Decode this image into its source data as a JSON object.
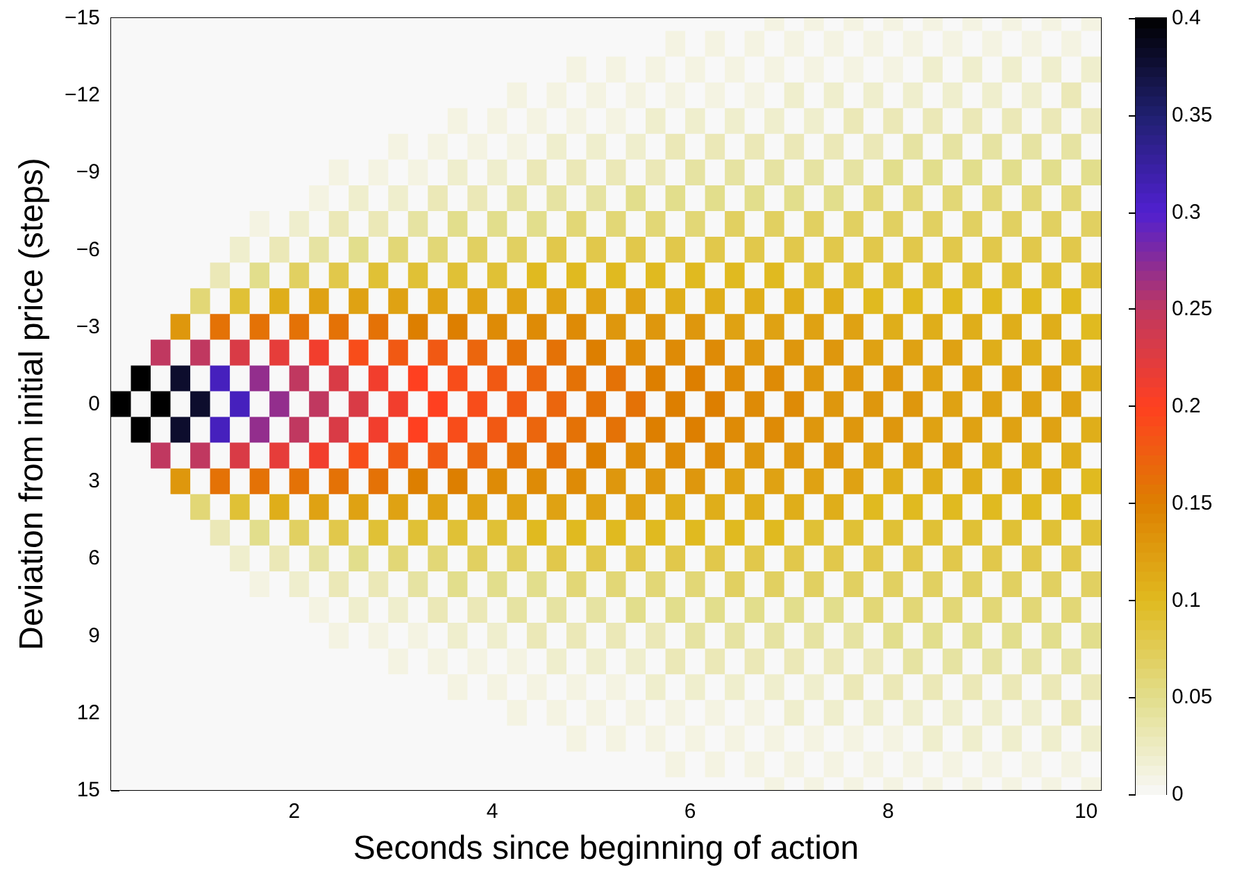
{
  "chart_data": {
    "type": "heatmap",
    "xlabel": "Seconds since beginning of action",
    "ylabel": "Deviation from initial price (steps)",
    "x": [
      0.25,
      0.45,
      0.65,
      0.85,
      1.05,
      1.25,
      1.45,
      1.65,
      1.85,
      2.05,
      2.25,
      2.45,
      2.65,
      2.85,
      3.05,
      3.25,
      3.45,
      3.65,
      3.85,
      4.05,
      4.25,
      4.45,
      4.65,
      4.85,
      5.05,
      5.25,
      5.45,
      5.65,
      5.85,
      6.05,
      6.25,
      6.45,
      6.65,
      6.85,
      7.05,
      7.25,
      7.45,
      7.65,
      7.85,
      8.05,
      8.25,
      8.45,
      8.65,
      8.85,
      9.05,
      9.25,
      9.45,
      9.65,
      9.85,
      10.05
    ],
    "y": [
      -15,
      -14,
      -13,
      -12,
      -11,
      -10,
      -9,
      -8,
      -7,
      -6,
      -5,
      -4,
      -3,
      -2,
      -1,
      0,
      1,
      2,
      3,
      4,
      5,
      6,
      7,
      8,
      9,
      10,
      11,
      12,
      13,
      14,
      15
    ],
    "xlim": [
      0.15,
      10.15
    ],
    "xticks": [
      2,
      4,
      6,
      8,
      10
    ],
    "ylim": [
      15,
      -15
    ],
    "yticks": [
      -15,
      -12,
      -9,
      -6,
      -3,
      0,
      3,
      6,
      9,
      12,
      15
    ],
    "clim": [
      0,
      0.4
    ],
    "cticks": [
      0,
      0.05,
      0.1,
      0.15,
      0.2,
      0.25,
      0.3,
      0.35,
      0.4
    ],
    "grid": false,
    "cells": [
      [
        0,
        0,
        0,
        0,
        0,
        0,
        0,
        0,
        0,
        0,
        0,
        0,
        0,
        0,
        0,
        0,
        0,
        0,
        0,
        0,
        0,
        0,
        0,
        0,
        0,
        0,
        0,
        0,
        0,
        0,
        0,
        0,
        0,
        0.01,
        0,
        0.01,
        0,
        0.01,
        0,
        0.01,
        0,
        0.01,
        0,
        0.01,
        0,
        0.01,
        0,
        0.01,
        0,
        0.01
      ],
      [
        0,
        0,
        0,
        0,
        0,
        0,
        0,
        0,
        0,
        0,
        0,
        0,
        0,
        0,
        0,
        0,
        0,
        0,
        0,
        0,
        0,
        0,
        0,
        0,
        0,
        0,
        0,
        0,
        0.01,
        0,
        0.01,
        0,
        0.01,
        0,
        0.01,
        0,
        0.01,
        0,
        0.01,
        0,
        0.01,
        0,
        0.01,
        0,
        0.01,
        0,
        0.01,
        0,
        0.01,
        0
      ],
      [
        0,
        0,
        0,
        0,
        0,
        0,
        0,
        0,
        0,
        0,
        0,
        0,
        0,
        0,
        0,
        0,
        0,
        0,
        0,
        0,
        0,
        0,
        0,
        0.01,
        0,
        0.01,
        0,
        0.01,
        0,
        0.01,
        0,
        0.01,
        0,
        0.01,
        0,
        0.01,
        0,
        0.01,
        0,
        0.01,
        0,
        0.02,
        0,
        0.02,
        0,
        0.02,
        0,
        0.02,
        0,
        0.02
      ],
      [
        0,
        0,
        0,
        0,
        0,
        0,
        0,
        0,
        0,
        0,
        0,
        0,
        0,
        0,
        0,
        0,
        0,
        0,
        0,
        0,
        0.01,
        0,
        0.01,
        0,
        0.01,
        0,
        0.01,
        0,
        0.01,
        0,
        0.01,
        0,
        0.01,
        0,
        0.02,
        0,
        0.02,
        0,
        0.02,
        0,
        0.02,
        0,
        0.02,
        0,
        0.02,
        0,
        0.02,
        0,
        0.03,
        0
      ],
      [
        0,
        0,
        0,
        0,
        0,
        0,
        0,
        0,
        0,
        0,
        0,
        0,
        0,
        0,
        0,
        0,
        0,
        0.01,
        0,
        0.01,
        0,
        0.01,
        0,
        0.01,
        0,
        0.01,
        0,
        0.02,
        0,
        0.02,
        0,
        0.02,
        0,
        0.02,
        0,
        0.02,
        0,
        0.03,
        0,
        0.03,
        0,
        0.03,
        0,
        0.03,
        0,
        0.03,
        0,
        0.03,
        0,
        0.03
      ],
      [
        0,
        0,
        0,
        0,
        0,
        0,
        0,
        0,
        0,
        0,
        0,
        0,
        0,
        0,
        0.01,
        0,
        0.01,
        0,
        0.01,
        0,
        0.01,
        0,
        0.02,
        0,
        0.02,
        0,
        0.02,
        0,
        0.03,
        0,
        0.03,
        0,
        0.03,
        0,
        0.03,
        0,
        0.03,
        0,
        0.03,
        0,
        0.04,
        0,
        0.04,
        0,
        0.04,
        0,
        0.04,
        0,
        0.04,
        0
      ],
      [
        0,
        0,
        0,
        0,
        0,
        0,
        0,
        0,
        0,
        0,
        0,
        0.01,
        0,
        0.01,
        0,
        0.01,
        0,
        0.02,
        0,
        0.02,
        0,
        0.03,
        0,
        0.03,
        0,
        0.03,
        0,
        0.03,
        0,
        0.04,
        0,
        0.04,
        0,
        0.04,
        0,
        0.04,
        0,
        0.04,
        0,
        0.05,
        0,
        0.05,
        0,
        0.05,
        0,
        0.05,
        0,
        0.05,
        0,
        0.05
      ],
      [
        0,
        0,
        0,
        0,
        0,
        0,
        0,
        0,
        0,
        0,
        0.01,
        0,
        0.02,
        0,
        0.02,
        0,
        0.03,
        0,
        0.03,
        0,
        0.04,
        0,
        0.04,
        0,
        0.04,
        0,
        0.05,
        0,
        0.05,
        0,
        0.05,
        0,
        0.05,
        0,
        0.05,
        0,
        0.05,
        0,
        0.06,
        0,
        0.06,
        0,
        0.06,
        0,
        0.06,
        0,
        0.06,
        0,
        0.06,
        0
      ],
      [
        0,
        0,
        0,
        0,
        0,
        0,
        0,
        0.01,
        0,
        0.02,
        0,
        0.03,
        0,
        0.03,
        0,
        0.04,
        0,
        0.05,
        0,
        0.05,
        0,
        0.05,
        0,
        0.06,
        0,
        0.06,
        0,
        0.06,
        0,
        0.06,
        0,
        0.07,
        0,
        0.07,
        0,
        0.07,
        0,
        0.07,
        0,
        0.07,
        0,
        0.07,
        0,
        0.07,
        0,
        0.07,
        0,
        0.07,
        0,
        0.07
      ],
      [
        0,
        0,
        0,
        0,
        0,
        0,
        0.02,
        0,
        0.03,
        0,
        0.04,
        0,
        0.05,
        0,
        0.06,
        0,
        0.06,
        0,
        0.07,
        0,
        0.07,
        0,
        0.08,
        0,
        0.08,
        0,
        0.08,
        0,
        0.08,
        0,
        0.08,
        0,
        0.08,
        0,
        0.08,
        0,
        0.08,
        0,
        0.08,
        0,
        0.08,
        0,
        0.08,
        0,
        0.08,
        0,
        0.08,
        0,
        0.08,
        0
      ],
      [
        0,
        0,
        0,
        0,
        0,
        0.03,
        0,
        0.05,
        0,
        0.07,
        0,
        0.08,
        0,
        0.09,
        0,
        0.09,
        0,
        0.09,
        0,
        0.09,
        0,
        0.1,
        0,
        0.1,
        0,
        0.1,
        0,
        0.1,
        0,
        0.1,
        0,
        0.1,
        0,
        0.1,
        0,
        0.09,
        0,
        0.09,
        0,
        0.09,
        0,
        0.09,
        0,
        0.09,
        0,
        0.09,
        0,
        0.09,
        0,
        0.09
      ],
      [
        0,
        0,
        0,
        0,
        0.06,
        0,
        0.09,
        0,
        0.11,
        0,
        0.12,
        0,
        0.12,
        0,
        0.12,
        0,
        0.12,
        0,
        0.12,
        0,
        0.12,
        0,
        0.12,
        0,
        0.12,
        0,
        0.12,
        0,
        0.11,
        0,
        0.11,
        0,
        0.11,
        0,
        0.11,
        0,
        0.11,
        0,
        0.1,
        0,
        0.1,
        0,
        0.1,
        0,
        0.1,
        0,
        0.1,
        0,
        0.1,
        0
      ],
      [
        0,
        0,
        0,
        0.13,
        0,
        0.16,
        0,
        0.16,
        0,
        0.16,
        0,
        0.16,
        0,
        0.16,
        0,
        0.15,
        0,
        0.15,
        0,
        0.14,
        0,
        0.14,
        0,
        0.14,
        0,
        0.13,
        0,
        0.13,
        0,
        0.13,
        0,
        0.12,
        0,
        0.12,
        0,
        0.12,
        0,
        0.12,
        0,
        0.11,
        0,
        0.11,
        0,
        0.11,
        0,
        0.11,
        0,
        0.11,
        0,
        0.1
      ],
      [
        0,
        0,
        0.25,
        0,
        0.25,
        0,
        0.23,
        0,
        0.22,
        0,
        0.21,
        0,
        0.19,
        0,
        0.18,
        0,
        0.18,
        0,
        0.17,
        0,
        0.16,
        0,
        0.16,
        0,
        0.15,
        0,
        0.14,
        0,
        0.14,
        0,
        0.14,
        0,
        0.13,
        0,
        0.13,
        0,
        0.13,
        0,
        0.12,
        0,
        0.12,
        0,
        0.12,
        0,
        0.11,
        0,
        0.11,
        0,
        0.11,
        0
      ],
      [
        0,
        0.4,
        0,
        0.38,
        0,
        0.31,
        0,
        0.27,
        0,
        0.25,
        0,
        0.23,
        0,
        0.21,
        0,
        0.2,
        0,
        0.19,
        0,
        0.18,
        0,
        0.17,
        0,
        0.16,
        0,
        0.16,
        0,
        0.15,
        0,
        0.15,
        0,
        0.14,
        0,
        0.14,
        0,
        0.13,
        0,
        0.13,
        0,
        0.13,
        0,
        0.12,
        0,
        0.12,
        0,
        0.12,
        0,
        0.12,
        0,
        0.11
      ],
      [
        0.4,
        0,
        0.4,
        0,
        0.38,
        0,
        0.31,
        0,
        0.27,
        0,
        0.25,
        0,
        0.23,
        0,
        0.21,
        0,
        0.2,
        0,
        0.19,
        0,
        0.18,
        0,
        0.17,
        0,
        0.16,
        0,
        0.16,
        0,
        0.15,
        0,
        0.15,
        0,
        0.14,
        0,
        0.14,
        0,
        0.13,
        0,
        0.13,
        0,
        0.13,
        0,
        0.12,
        0,
        0.12,
        0,
        0.12,
        0,
        0.12,
        0
      ],
      [
        0,
        0.4,
        0,
        0.38,
        0,
        0.31,
        0,
        0.27,
        0,
        0.25,
        0,
        0.23,
        0,
        0.21,
        0,
        0.2,
        0,
        0.19,
        0,
        0.18,
        0,
        0.17,
        0,
        0.16,
        0,
        0.16,
        0,
        0.15,
        0,
        0.15,
        0,
        0.14,
        0,
        0.14,
        0,
        0.13,
        0,
        0.13,
        0,
        0.13,
        0,
        0.12,
        0,
        0.12,
        0,
        0.12,
        0,
        0.12,
        0,
        0.11
      ],
      [
        0,
        0,
        0.25,
        0,
        0.25,
        0,
        0.23,
        0,
        0.22,
        0,
        0.21,
        0,
        0.19,
        0,
        0.18,
        0,
        0.18,
        0,
        0.17,
        0,
        0.16,
        0,
        0.16,
        0,
        0.15,
        0,
        0.14,
        0,
        0.14,
        0,
        0.14,
        0,
        0.13,
        0,
        0.13,
        0,
        0.13,
        0,
        0.12,
        0,
        0.12,
        0,
        0.12,
        0,
        0.11,
        0,
        0.11,
        0,
        0.11,
        0
      ],
      [
        0,
        0,
        0,
        0.13,
        0,
        0.16,
        0,
        0.16,
        0,
        0.16,
        0,
        0.16,
        0,
        0.16,
        0,
        0.15,
        0,
        0.15,
        0,
        0.14,
        0,
        0.14,
        0,
        0.14,
        0,
        0.13,
        0,
        0.13,
        0,
        0.13,
        0,
        0.12,
        0,
        0.12,
        0,
        0.12,
        0,
        0.12,
        0,
        0.11,
        0,
        0.11,
        0,
        0.11,
        0,
        0.11,
        0,
        0.11,
        0,
        0.1
      ],
      [
        0,
        0,
        0,
        0,
        0.06,
        0,
        0.09,
        0,
        0.11,
        0,
        0.12,
        0,
        0.12,
        0,
        0.12,
        0,
        0.12,
        0,
        0.12,
        0,
        0.12,
        0,
        0.12,
        0,
        0.12,
        0,
        0.12,
        0,
        0.11,
        0,
        0.11,
        0,
        0.11,
        0,
        0.11,
        0,
        0.11,
        0,
        0.1,
        0,
        0.1,
        0,
        0.1,
        0,
        0.1,
        0,
        0.1,
        0,
        0.1,
        0
      ],
      [
        0,
        0,
        0,
        0,
        0,
        0.03,
        0,
        0.05,
        0,
        0.07,
        0,
        0.08,
        0,
        0.09,
        0,
        0.09,
        0,
        0.09,
        0,
        0.09,
        0,
        0.1,
        0,
        0.1,
        0,
        0.1,
        0,
        0.1,
        0,
        0.1,
        0,
        0.1,
        0,
        0.1,
        0,
        0.09,
        0,
        0.09,
        0,
        0.09,
        0,
        0.09,
        0,
        0.09,
        0,
        0.09,
        0,
        0.09,
        0,
        0.09
      ],
      [
        0,
        0,
        0,
        0,
        0,
        0,
        0.02,
        0,
        0.03,
        0,
        0.04,
        0,
        0.05,
        0,
        0.06,
        0,
        0.06,
        0,
        0.07,
        0,
        0.07,
        0,
        0.08,
        0,
        0.08,
        0,
        0.08,
        0,
        0.08,
        0,
        0.08,
        0,
        0.08,
        0,
        0.08,
        0,
        0.08,
        0,
        0.08,
        0,
        0.08,
        0,
        0.08,
        0,
        0.08,
        0,
        0.08,
        0,
        0.08,
        0
      ],
      [
        0,
        0,
        0,
        0,
        0,
        0,
        0,
        0.01,
        0,
        0.02,
        0,
        0.03,
        0,
        0.03,
        0,
        0.04,
        0,
        0.05,
        0,
        0.05,
        0,
        0.05,
        0,
        0.06,
        0,
        0.06,
        0,
        0.06,
        0,
        0.06,
        0,
        0.07,
        0,
        0.07,
        0,
        0.07,
        0,
        0.07,
        0,
        0.07,
        0,
        0.07,
        0,
        0.07,
        0,
        0.07,
        0,
        0.07,
        0,
        0.07
      ],
      [
        0,
        0,
        0,
        0,
        0,
        0,
        0,
        0,
        0,
        0,
        0.01,
        0,
        0.02,
        0,
        0.02,
        0,
        0.03,
        0,
        0.03,
        0,
        0.04,
        0,
        0.04,
        0,
        0.04,
        0,
        0.05,
        0,
        0.05,
        0,
        0.05,
        0,
        0.05,
        0,
        0.05,
        0,
        0.05,
        0,
        0.06,
        0,
        0.06,
        0,
        0.06,
        0,
        0.06,
        0,
        0.06,
        0,
        0.06,
        0
      ],
      [
        0,
        0,
        0,
        0,
        0,
        0,
        0,
        0,
        0,
        0,
        0,
        0.01,
        0,
        0.01,
        0,
        0.01,
        0,
        0.02,
        0,
        0.02,
        0,
        0.03,
        0,
        0.03,
        0,
        0.03,
        0,
        0.03,
        0,
        0.04,
        0,
        0.04,
        0,
        0.04,
        0,
        0.04,
        0,
        0.04,
        0,
        0.05,
        0,
        0.05,
        0,
        0.05,
        0,
        0.05,
        0,
        0.05,
        0,
        0.05
      ],
      [
        0,
        0,
        0,
        0,
        0,
        0,
        0,
        0,
        0,
        0,
        0,
        0,
        0,
        0,
        0.01,
        0,
        0.01,
        0,
        0.01,
        0,
        0.01,
        0,
        0.02,
        0,
        0.02,
        0,
        0.02,
        0,
        0.03,
        0,
        0.03,
        0,
        0.03,
        0,
        0.03,
        0,
        0.03,
        0,
        0.03,
        0,
        0.04,
        0,
        0.04,
        0,
        0.04,
        0,
        0.04,
        0,
        0.04,
        0
      ],
      [
        0,
        0,
        0,
        0,
        0,
        0,
        0,
        0,
        0,
        0,
        0,
        0,
        0,
        0,
        0,
        0,
        0,
        0.01,
        0,
        0.01,
        0,
        0.01,
        0,
        0.01,
        0,
        0.01,
        0,
        0.02,
        0,
        0.02,
        0,
        0.02,
        0,
        0.02,
        0,
        0.02,
        0,
        0.03,
        0,
        0.03,
        0,
        0.03,
        0,
        0.03,
        0,
        0.03,
        0,
        0.03,
        0,
        0.03
      ],
      [
        0,
        0,
        0,
        0,
        0,
        0,
        0,
        0,
        0,
        0,
        0,
        0,
        0,
        0,
        0,
        0,
        0,
        0,
        0,
        0,
        0.01,
        0,
        0.01,
        0,
        0.01,
        0,
        0.01,
        0,
        0.01,
        0,
        0.01,
        0,
        0.01,
        0,
        0.02,
        0,
        0.02,
        0,
        0.02,
        0,
        0.02,
        0,
        0.02,
        0,
        0.02,
        0,
        0.02,
        0,
        0.03,
        0
      ],
      [
        0,
        0,
        0,
        0,
        0,
        0,
        0,
        0,
        0,
        0,
        0,
        0,
        0,
        0,
        0,
        0,
        0,
        0,
        0,
        0,
        0,
        0,
        0,
        0.01,
        0,
        0.01,
        0,
        0.01,
        0,
        0.01,
        0,
        0.01,
        0,
        0.01,
        0,
        0.01,
        0,
        0.01,
        0,
        0.01,
        0,
        0.02,
        0,
        0.02,
        0,
        0.02,
        0,
        0.02,
        0,
        0.02
      ],
      [
        0,
        0,
        0,
        0,
        0,
        0,
        0,
        0,
        0,
        0,
        0,
        0,
        0,
        0,
        0,
        0,
        0,
        0,
        0,
        0,
        0,
        0,
        0,
        0,
        0,
        0,
        0,
        0,
        0.01,
        0,
        0.01,
        0,
        0.01,
        0,
        0.01,
        0,
        0.01,
        0,
        0.01,
        0,
        0.01,
        0,
        0.01,
        0,
        0.01,
        0,
        0.01,
        0,
        0.01,
        0
      ],
      [
        0,
        0,
        0,
        0,
        0,
        0,
        0,
        0,
        0,
        0,
        0,
        0,
        0,
        0,
        0,
        0,
        0,
        0,
        0,
        0,
        0,
        0,
        0,
        0,
        0,
        0,
        0,
        0,
        0,
        0,
        0,
        0,
        0,
        0.01,
        0,
        0.01,
        0,
        0.01,
        0,
        0.01,
        0,
        0.01,
        0,
        0.01,
        0,
        0.01,
        0,
        0.01,
        0,
        0.01
      ]
    ]
  }
}
